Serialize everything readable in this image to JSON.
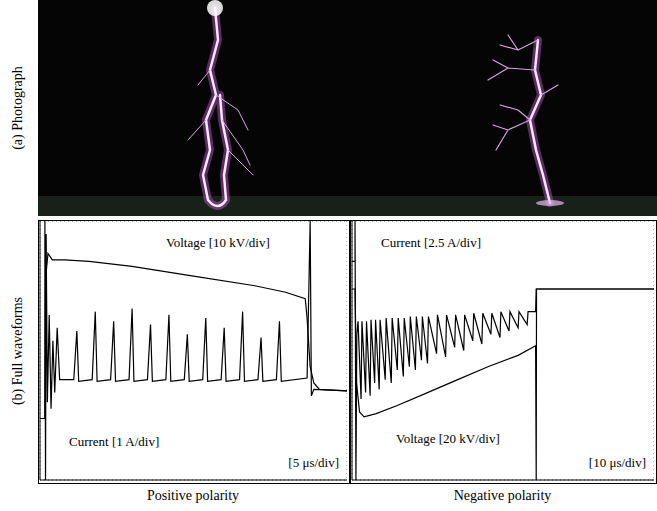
{
  "figure": {
    "row_labels": [
      "(a) Photograph",
      "(b) Full waveforms"
    ]
  },
  "chart_data": [
    {
      "type": "line",
      "title": "Positive polarity",
      "xlim": [
        0,
        50
      ],
      "xticks": [
        0,
        5,
        10,
        15,
        20,
        25,
        30,
        35,
        40,
        45,
        50
      ],
      "ylim": [
        -4,
        4
      ],
      "yticks": [
        -4,
        -3,
        -2,
        -1,
        0,
        1,
        2,
        3,
        4
      ],
      "grid": true,
      "tick_labels": false,
      "annotations": [
        "[5 μs/div]"
      ],
      "series": [
        {
          "name": "Voltage [10 kV/div]",
          "color": "#000000",
          "x": [
            0,
            0.8,
            0.9,
            1.3,
            2,
            4,
            8,
            15,
            25,
            35,
            40,
            43.2,
            43.5,
            44,
            44.6,
            45.5,
            50
          ],
          "values": [
            -2.1,
            -2.1,
            2.2,
            3.0,
            2.8,
            2.8,
            2.75,
            2.6,
            2.3,
            2.0,
            1.8,
            1.6,
            1.0,
            -0.5,
            -1.0,
            -1.2,
            -1.25
          ]
        },
        {
          "name": "Current [1 A/div]",
          "color": "#000000",
          "x": [
            0,
            0.8,
            0.8,
            0.9,
            1.0,
            1.2,
            1.5,
            1.8,
            2.1,
            2.4,
            2.8,
            3.2,
            5.5,
            6,
            6.3,
            8.5,
            9,
            9.3,
            11.5,
            12,
            12.3,
            14.5,
            15,
            15.3,
            17.5,
            18,
            18.3,
            20.5,
            21,
            21.3,
            23.5,
            24,
            24.3,
            26.5,
            27,
            27.3,
            29.5,
            30,
            30.3,
            32.5,
            33,
            33.3,
            35.5,
            36,
            36.3,
            38.5,
            39,
            39.3,
            43.5,
            44,
            44.2,
            44.6,
            50
          ],
          "values": [
            -2.1,
            -2.1,
            4,
            -4,
            3.6,
            -1.6,
            1.1,
            -1.8,
            0.3,
            -1.3,
            0.7,
            -0.9,
            -0.9,
            0.6,
            -0.95,
            -0.9,
            1.2,
            -0.95,
            -0.9,
            0.9,
            -0.95,
            -0.9,
            1.3,
            -0.95,
            -0.9,
            0.8,
            -0.95,
            -0.9,
            1.1,
            -0.95,
            -0.9,
            0.5,
            -0.95,
            -0.9,
            1.0,
            -0.95,
            -0.9,
            0.7,
            -0.95,
            -0.9,
            1.2,
            -0.95,
            -0.9,
            0.4,
            -0.95,
            -0.9,
            0.9,
            -0.95,
            -0.85,
            4,
            -1.4,
            -1.2,
            -1.25
          ]
        }
      ]
    },
    {
      "type": "line",
      "title": "Negative polarity",
      "xlim": [
        0,
        100
      ],
      "xticks": [
        0,
        10,
        20,
        30,
        40,
        50,
        60,
        70,
        80,
        90,
        100
      ],
      "ylim": [
        -4,
        4
      ],
      "yticks": [
        -4,
        -3,
        -2,
        -1,
        0,
        1,
        2,
        3,
        4
      ],
      "grid": true,
      "tick_labels": false,
      "annotations": [
        "[10 μs/div]"
      ],
      "series": [
        {
          "name": "Voltage [20 kV/div]",
          "color": "#000000",
          "x": [
            0,
            1,
            1.5,
            2.5,
            4,
            8,
            15,
            25,
            35,
            45,
            55,
            60.8,
            61,
            61.1,
            100
          ],
          "values": [
            1.9,
            1.9,
            -1.0,
            -1.9,
            -2.05,
            -1.95,
            -1.7,
            -1.3,
            -0.9,
            -0.5,
            -0.15,
            0.15,
            -4,
            1.9,
            1.9
          ]
        },
        {
          "name": "Current [2.5 A/div]",
          "color": "#000000",
          "x": [
            0,
            1,
            1,
            1.3,
            1.6,
            2,
            3,
            3.3,
            4.5,
            4.8,
            6,
            6.3,
            7.5,
            7.8,
            9,
            9.3,
            11,
            11.3,
            13,
            13.3,
            15,
            15.3,
            17,
            17.3,
            19,
            19.3,
            21,
            21.3,
            23,
            23.3,
            25,
            25.3,
            28,
            28.3,
            31,
            31.3,
            34,
            34.3,
            37,
            37.3,
            40,
            40.3,
            43,
            43.3,
            46,
            46.3,
            49,
            49.3,
            52,
            52.3,
            55,
            55.3,
            58,
            58.3,
            60.8,
            61,
            100
          ],
          "values": [
            2.75,
            2.75,
            4,
            -4,
            0.5,
            0.9,
            -1.5,
            0.9,
            -1.3,
            0.9,
            -1.4,
            0.95,
            -1.0,
            0.95,
            -1.2,
            0.95,
            -0.9,
            1.0,
            -1.0,
            1.0,
            -0.6,
            1.0,
            -0.8,
            1.0,
            -0.5,
            1.05,
            -0.6,
            1.05,
            -0.3,
            1.05,
            -0.4,
            1.05,
            -0.1,
            1.1,
            -0.2,
            1.1,
            0.1,
            1.1,
            0.0,
            1.1,
            0.3,
            1.15,
            0.2,
            1.15,
            0.5,
            1.15,
            0.4,
            1.2,
            0.6,
            1.2,
            0.7,
            1.2,
            0.8,
            1.2,
            1.2,
            1.9,
            1.9
          ]
        }
      ]
    }
  ]
}
